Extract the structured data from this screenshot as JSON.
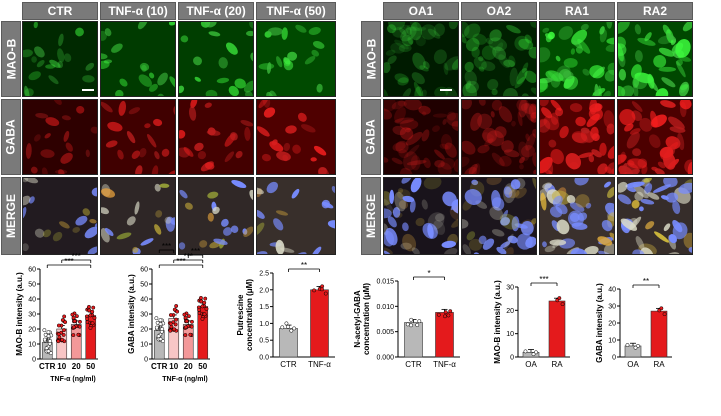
{
  "left_panel": {
    "columns": [
      "CTR",
      "TNF-α (10)",
      "TNF-α (20)",
      "TNF-α (50)"
    ],
    "rows": [
      "MAO-B",
      "GABA",
      "MERGE"
    ]
  },
  "right_panel": {
    "columns": [
      "OA1",
      "OA2",
      "RA1",
      "RA2"
    ],
    "rows": [
      "MAO-B",
      "GABA",
      "MERGE"
    ]
  },
  "colors": {
    "control": "#b8b8b8",
    "treated": "#e41a1c",
    "header": "#7a7a7a"
  },
  "chart_data": [
    {
      "type": "bar",
      "id": "maob_left",
      "categories": [
        "CTR",
        "10",
        "20",
        "50"
      ],
      "values": [
        11,
        20,
        23,
        29
      ],
      "ylabel": "MAO-B intensity (a.u.)",
      "xlabel": "TNF-α (ng/ml)",
      "ylim": [
        0,
        60
      ],
      "yticks": [
        0,
        10,
        20,
        30,
        40,
        50,
        60
      ],
      "significance": [
        "***",
        "***"
      ]
    },
    {
      "type": "bar",
      "id": "gaba_left",
      "categories": [
        "CTR",
        "10",
        "20",
        "50"
      ],
      "values": [
        19,
        27,
        23,
        35
      ],
      "ylabel": "GABA intensity (a.u.)",
      "xlabel": "TNF-α (ng/ml)",
      "ylim": [
        0,
        60
      ],
      "yticks": [
        0,
        10,
        20,
        30,
        40,
        50,
        60
      ],
      "significance": [
        "***",
        "***",
        "***",
        "***"
      ]
    },
    {
      "type": "bar",
      "id": "putrescine",
      "categories": [
        "CTR",
        "TNF-α"
      ],
      "values": [
        0.85,
        2.0
      ],
      "ylabel": "Putrescine concentration (μM)",
      "ylim": [
        0,
        2.5
      ],
      "yticks": [
        0.0,
        0.5,
        1.0,
        1.5,
        2.0,
        2.5
      ],
      "significance": [
        "**"
      ]
    },
    {
      "type": "bar",
      "id": "nacetylgaba",
      "categories": [
        "CTR",
        "TNF-α"
      ],
      "values": [
        0.0068,
        0.0088
      ],
      "ylabel": "N-acetyl-GABA concentration (μM)",
      "ylim": [
        0,
        0.015
      ],
      "yticks": [
        0.0,
        0.005,
        0.01,
        0.015
      ],
      "significance": [
        "*"
      ]
    },
    {
      "type": "bar",
      "id": "maob_right",
      "categories": [
        "OA",
        "RA"
      ],
      "values": [
        2,
        24
      ],
      "ylabel": "MAO-B intensity (a.u.)",
      "ylim": [
        0,
        30
      ],
      "yticks": [
        0,
        10,
        20,
        30
      ],
      "significance": [
        "***"
      ]
    },
    {
      "type": "bar",
      "id": "gaba_right",
      "categories": [
        "OA",
        "RA"
      ],
      "values": [
        6.5,
        27
      ],
      "ylabel": "GABA intensity (a.u.)",
      "ylim": [
        0,
        40
      ],
      "yticks": [
        0,
        10,
        20,
        30,
        40
      ],
      "significance": [
        "**"
      ]
    }
  ]
}
